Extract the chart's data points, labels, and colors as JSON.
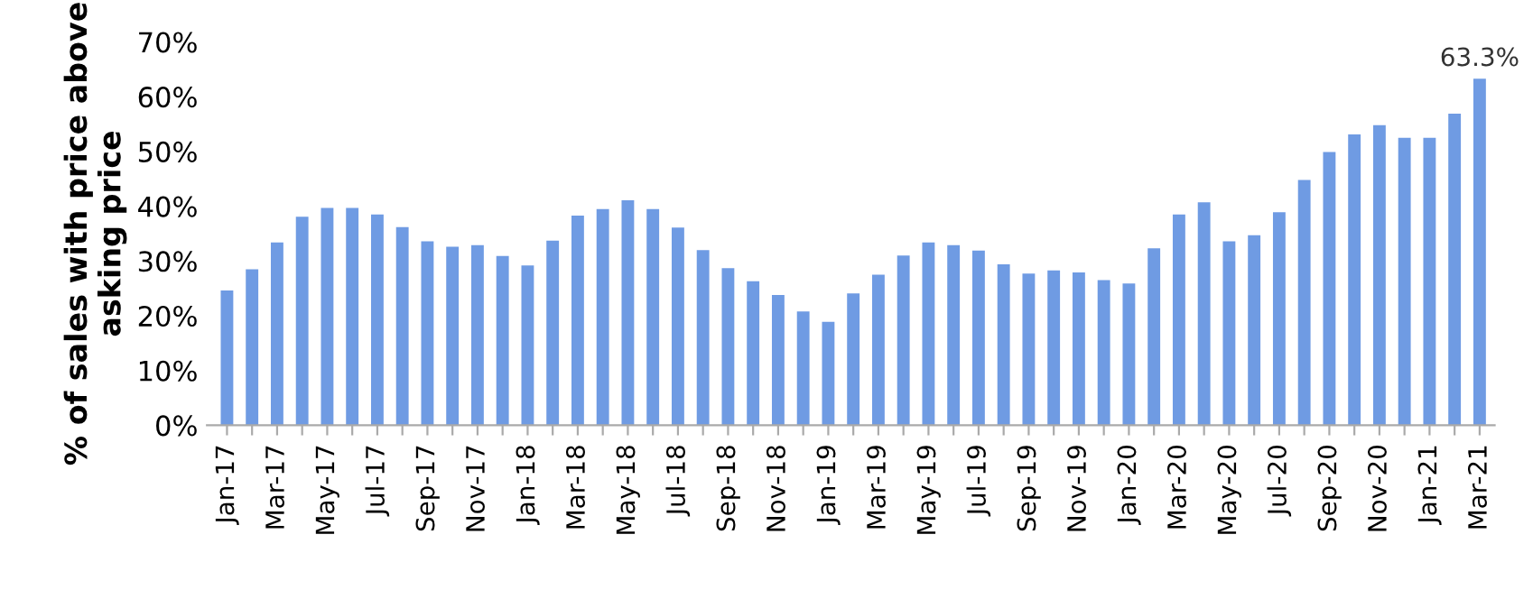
{
  "chart_data": {
    "type": "bar",
    "ylabel": "% of sales with price above\nasking price",
    "categories": [
      "Jan-17",
      null,
      "Mar-17",
      null,
      "May-17",
      null,
      "Jul-17",
      null,
      "Sep-17",
      null,
      "Nov-17",
      null,
      "Jan-18",
      null,
      "Mar-18",
      null,
      "May-18",
      null,
      "Jul-18",
      null,
      "Sep-18",
      null,
      "Nov-18",
      null,
      "Jan-19",
      null,
      "Mar-19",
      null,
      "May-19",
      null,
      "Jul-19",
      null,
      "Sep-19",
      null,
      "Nov-19",
      null,
      "Jan-20",
      null,
      "Mar-20",
      null,
      "May-20",
      null,
      "Jul-20",
      null,
      "Sep-20",
      null,
      "Nov-20",
      null,
      "Jan-21",
      null,
      "Mar-21"
    ],
    "values": [
      24.6,
      28.5,
      33.4,
      38.1,
      39.7,
      39.7,
      38.5,
      36.2,
      33.6,
      32.6,
      32.9,
      30.9,
      29.2,
      33.7,
      38.3,
      39.5,
      41.1,
      39.5,
      36.1,
      32.0,
      28.7,
      26.3,
      23.8,
      20.8,
      18.9,
      24.1,
      27.5,
      31.0,
      33.4,
      32.9,
      31.9,
      29.4,
      27.7,
      28.3,
      27.9,
      26.5,
      25.9,
      32.3,
      38.5,
      40.7,
      33.6,
      34.7,
      38.9,
      44.8,
      49.9,
      53.1,
      54.8,
      52.5,
      52.5,
      56.9,
      63.3
    ],
    "value_labels": [
      null,
      null,
      null,
      null,
      null,
      null,
      null,
      null,
      null,
      null,
      null,
      null,
      null,
      null,
      null,
      null,
      null,
      null,
      null,
      null,
      null,
      null,
      null,
      null,
      null,
      null,
      null,
      null,
      null,
      null,
      null,
      null,
      null,
      null,
      null,
      null,
      null,
      null,
      null,
      null,
      null,
      null,
      null,
      null,
      null,
      null,
      null,
      null,
      null,
      null,
      "63.3%"
    ],
    "color": "#6f9be3",
    "ylim": [
      0,
      70
    ],
    "yticks": [
      {
        "value": 0,
        "label": "0%"
      },
      {
        "value": 10,
        "label": "10%"
      },
      {
        "value": 20,
        "label": "20%"
      },
      {
        "value": 30,
        "label": "30%"
      },
      {
        "value": 40,
        "label": "40%"
      },
      {
        "value": 50,
        "label": "50%"
      },
      {
        "value": 60,
        "label": "60%"
      },
      {
        "value": 70,
        "label": "70%"
      }
    ],
    "grid": false
  }
}
